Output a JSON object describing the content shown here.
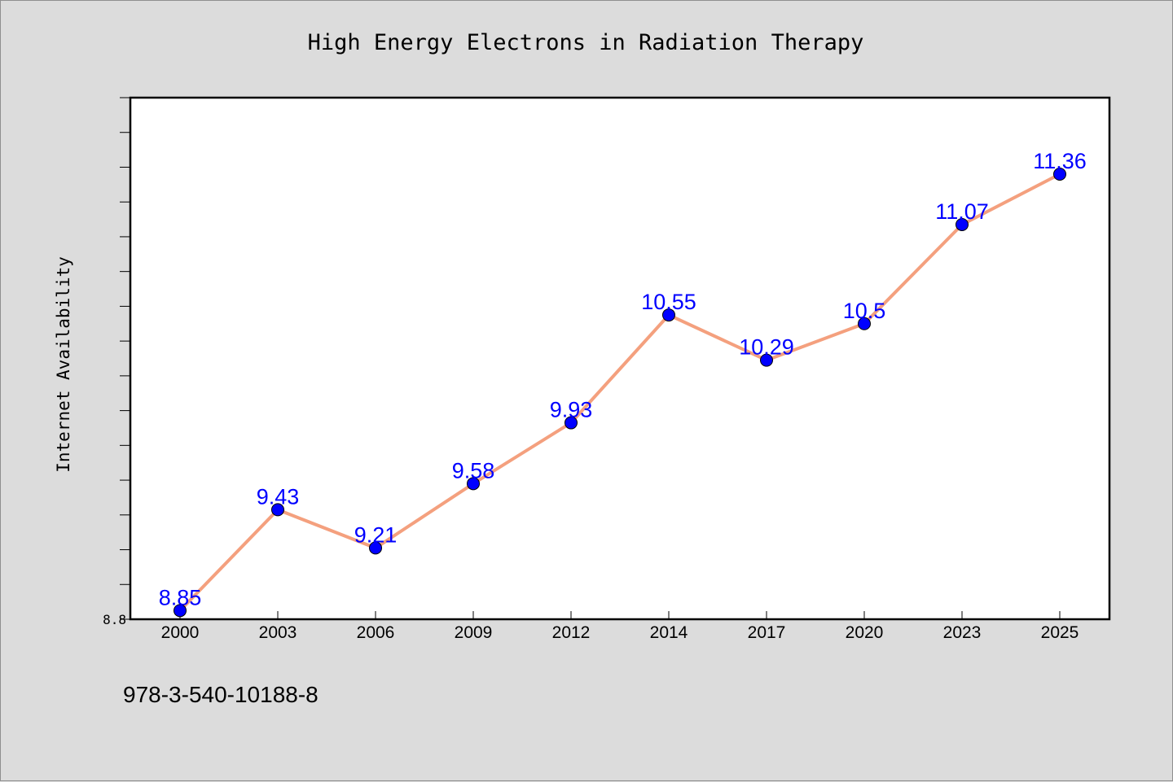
{
  "chart_data": {
    "type": "line",
    "title": "High Energy Electrons in Radiation Therapy",
    "xlabel": "",
    "ylabel": "Internet Availability",
    "categories": [
      "2000",
      "2003",
      "2006",
      "2009",
      "2012",
      "2014",
      "2017",
      "2020",
      "2023",
      "2025"
    ],
    "series": [
      {
        "values": [
          8.85,
          9.43,
          9.21,
          9.58,
          9.93,
          10.55,
          10.29,
          10.5,
          11.07,
          11.36
        ]
      }
    ],
    "data_labels": [
      "8.85",
      "9.43",
      "9.21",
      "9.58",
      "9.93",
      "10.55",
      "10.29",
      "10.5",
      "11.07",
      "11.36"
    ],
    "ylim": [
      8.8,
      11.8
    ],
    "yticks_labeled": [
      "8.8"
    ],
    "minor_tick_step": 0.2,
    "grid": false,
    "legend": "none",
    "line_color": "#f4a07e",
    "marker_color": "#0000ff",
    "label_color": "#0000ff"
  },
  "footer": {
    "text": "978-3-540-10188-8"
  }
}
